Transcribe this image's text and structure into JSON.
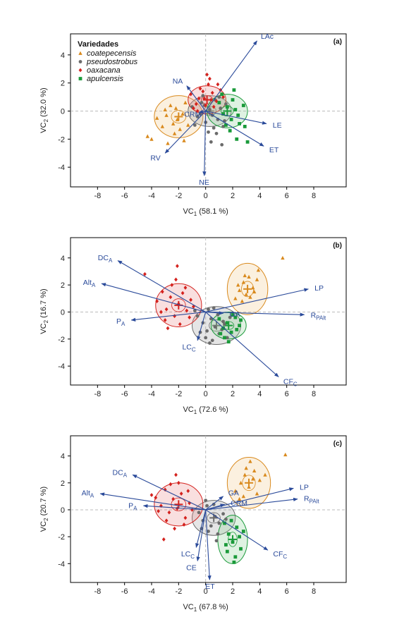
{
  "chart_data": [
    {
      "type": "scatter",
      "panel_label": "(a)",
      "xlabel": {
        "base": "VC",
        "sub": "1",
        "rest": " (58.1 %)"
      },
      "ylabel": {
        "base": "VC",
        "sub": "2",
        "rest": " (32.0 %)"
      },
      "xlim": [
        -10,
        10.4
      ],
      "ylim": [
        -5.4,
        5.5
      ],
      "xticks": [
        -8,
        -6,
        -4,
        -2,
        0,
        2,
        4,
        6,
        8
      ],
      "yticks": [
        -4,
        -2,
        0,
        2,
        4
      ],
      "legend": {
        "title": "Variedades",
        "placement": "top-left",
        "entries": [
          {
            "name": "coatepecensis",
            "marker": "triangle",
            "color": "#d98a1e"
          },
          {
            "name": "pseudostrobus",
            "marker": "circle",
            "color": "#6b6b6b"
          },
          {
            "name": "oaxacana",
            "marker": "diamond",
            "color": "#d4221e"
          },
          {
            "name": "apulcensis",
            "marker": "square",
            "color": "#1a9a3a"
          }
        ]
      },
      "ellipses": [
        {
          "group": "coatepecensis",
          "cx": -2.0,
          "cy": -0.4,
          "rx": 1.8,
          "ry": 1.5
        },
        {
          "group": "pseudostrobus",
          "cx": 0.3,
          "cy": 0.0,
          "rx": 1.6,
          "ry": 1.1
        },
        {
          "group": "oaxacana",
          "cx": 0.1,
          "cy": 0.8,
          "rx": 1.4,
          "ry": 1.0
        },
        {
          "group": "apulcensis",
          "cx": 1.6,
          "cy": 0.0,
          "rx": 1.5,
          "ry": 1.2
        }
      ],
      "vectors": [
        {
          "label": "LAc",
          "sub": "",
          "x": 3.8,
          "y": 5.0
        },
        {
          "label": "NA",
          "sub": "",
          "x": -1.4,
          "y": 1.8
        },
        {
          "label": "CRM",
          "sub": "",
          "x": -0.5,
          "y": -0.1
        },
        {
          "label": "LE",
          "sub": "",
          "x": 4.5,
          "y": -0.9
        },
        {
          "label": "ET",
          "sub": "",
          "x": 4.3,
          "y": -2.5
        },
        {
          "label": "RV",
          "sub": "",
          "x": -3.0,
          "y": -3.0
        },
        {
          "label": "NE",
          "sub": "",
          "x": -0.1,
          "y": -4.6
        }
      ],
      "series": [
        {
          "name": "coatepecensis",
          "x": [
            -4.3,
            -3.2,
            -2.9,
            -2.6,
            -2.4,
            -2.2,
            -2.1,
            -1.9,
            -1.7,
            -1.5,
            -1.3,
            -3.6,
            -2.8,
            -4.0,
            -2.3,
            -1.6,
            -3.0
          ],
          "y": [
            -1.8,
            -1.1,
            -0.3,
            0.4,
            -0.9,
            0.2,
            -0.6,
            -1.3,
            -0.2,
            0.6,
            -1.0,
            -0.5,
            -2.3,
            -2.0,
            -1.6,
            -2.1,
            0.1
          ]
        },
        {
          "name": "pseudostrobus",
          "x": [
            -1.0,
            -0.6,
            -0.3,
            0.0,
            0.3,
            0.5,
            0.7,
            0.9,
            1.1,
            1.3,
            1.5,
            -0.8,
            -0.2,
            0.2,
            0.6,
            1.0,
            -0.4,
            0.8,
            1.4,
            -0.1,
            0.4,
            1.2
          ],
          "y": [
            0.3,
            -0.4,
            0.6,
            -0.8,
            0.1,
            -0.3,
            0.8,
            -0.6,
            0.2,
            -1.1,
            0.5,
            -1.0,
            1.1,
            -1.5,
            -1.2,
            1.0,
            -0.2,
            -1.6,
            -0.7,
            0.4,
            -2.2,
            -2.4
          ]
        },
        {
          "name": "oaxacana",
          "x": [
            -1.1,
            -0.7,
            -0.4,
            -0.1,
            0.2,
            0.5,
            0.8,
            1.1,
            -0.9,
            -0.5,
            0.0,
            0.4,
            0.9,
            -0.2,
            0.6,
            0.1,
            -0.6,
            1.3,
            0.3
          ],
          "y": [
            1.2,
            0.5,
            1.6,
            0.9,
            1.9,
            1.3,
            0.7,
            1.5,
            0.2,
            0.9,
            0.4,
            0.8,
            1.9,
            1.4,
            0.3,
            2.6,
            0.0,
            1.0,
            2.3
          ]
        },
        {
          "name": "apulcensis",
          "x": [
            1.0,
            1.3,
            1.6,
            1.9,
            2.2,
            2.5,
            2.8,
            1.5,
            2.0,
            2.4,
            1.2,
            1.8,
            2.9,
            2.3,
            3.1,
            2.1
          ],
          "y": [
            0.6,
            -0.2,
            0.3,
            -0.6,
            0.1,
            -0.9,
            0.4,
            -1.0,
            0.8,
            -0.3,
            1.2,
            -1.4,
            -1.1,
            -2.0,
            -2.2,
            1.5
          ]
        }
      ]
    },
    {
      "type": "scatter",
      "panel_label": "(b)",
      "xlabel": {
        "base": "VC",
        "sub": "1",
        "rest": " (72.6 %)"
      },
      "ylabel": {
        "base": "VC",
        "sub": "2",
        "rest": " (16.7 %)"
      },
      "xlim": [
        -10,
        10.4
      ],
      "ylim": [
        -5.4,
        5.5
      ],
      "xticks": [
        -8,
        -6,
        -4,
        -2,
        0,
        2,
        4,
        6,
        8
      ],
      "yticks": [
        -4,
        -2,
        0,
        2,
        4
      ],
      "ellipses": [
        {
          "group": "coatepecensis",
          "cx": 3.1,
          "cy": 1.7,
          "rx": 1.5,
          "ry": 1.9
        },
        {
          "group": "pseudostrobus",
          "cx": 0.8,
          "cy": -1.0,
          "rx": 1.8,
          "ry": 1.4
        },
        {
          "group": "oaxacana",
          "cx": -2.0,
          "cy": 0.5,
          "rx": 1.7,
          "ry": 1.6
        },
        {
          "group": "apulcensis",
          "cx": 1.7,
          "cy": -1.0,
          "rx": 1.3,
          "ry": 1.0
        }
      ],
      "vectors": [
        {
          "label": "DC",
          "sub": "A",
          "x": -6.5,
          "y": 3.8
        },
        {
          "label": "Alt",
          "sub": "A",
          "x": -7.7,
          "y": 2.1
        },
        {
          "label": "P",
          "sub": "A",
          "x": -5.5,
          "y": -0.6
        },
        {
          "label": "LC",
          "sub": "C",
          "x": -0.6,
          "y": -2.1
        },
        {
          "label": "GA",
          "sub": "",
          "x": 1.3,
          "y": -0.1
        },
        {
          "label": "LP",
          "sub": "",
          "x": 7.6,
          "y": 1.7
        },
        {
          "label": "R",
          "sub": "PAlt",
          "x": 7.3,
          "y": -0.2
        },
        {
          "label": "CF",
          "sub": "C",
          "x": 5.4,
          "y": -4.8
        }
      ],
      "series": [
        {
          "name": "coatepecensis",
          "x": [
            2.2,
            2.5,
            2.8,
            3.0,
            3.2,
            3.5,
            3.8,
            2.7,
            3.3,
            2.4,
            3.6,
            5.7,
            3.9,
            2.9
          ],
          "y": [
            1.0,
            1.6,
            2.2,
            1.3,
            2.6,
            1.8,
            2.4,
            0.8,
            1.1,
            2.0,
            1.5,
            4.0,
            3.1,
            2.7
          ]
        },
        {
          "name": "pseudostrobus",
          "x": [
            -0.6,
            -0.2,
            0.1,
            0.4,
            0.7,
            1.0,
            1.3,
            1.6,
            0.2,
            0.5,
            0.9,
            1.2,
            -0.4,
            0.0,
            0.6,
            1.4,
            0.3,
            1.8,
            -0.8
          ],
          "y": [
            -0.3,
            -0.8,
            -1.4,
            -0.5,
            -1.1,
            -1.6,
            -0.7,
            -1.9,
            0.2,
            -2.1,
            -0.2,
            -1.3,
            -1.5,
            -1.9,
            0.3,
            -0.9,
            -2.3,
            -0.4,
            0.1
          ]
        },
        {
          "name": "oaxacana",
          "x": [
            -3.6,
            -3.2,
            -2.9,
            -2.6,
            -2.3,
            -2.0,
            -1.7,
            -1.4,
            -1.1,
            -3.0,
            -2.5,
            -1.9,
            -1.5,
            -3.3,
            -2.8,
            -2.2,
            -1.2,
            -4.5,
            -2.1,
            -0.9
          ],
          "y": [
            0.8,
            1.5,
            0.2,
            1.1,
            -0.3,
            0.6,
            1.4,
            0.1,
            0.9,
            -0.6,
            2.0,
            -0.9,
            1.8,
            0.0,
            -1.2,
            2.4,
            -0.4,
            2.8,
            3.4,
            0.4
          ]
        },
        {
          "name": "apulcensis",
          "x": [
            1.0,
            1.3,
            1.6,
            1.9,
            2.2,
            2.5,
            1.4,
            2.0,
            2.6,
            1.1,
            1.7,
            2.3
          ],
          "y": [
            -0.5,
            -1.2,
            -0.8,
            -1.5,
            -0.4,
            -1.0,
            -1.9,
            -0.2,
            -0.6,
            -1.6,
            -2.2,
            -1.3
          ]
        }
      ]
    },
    {
      "type": "scatter",
      "panel_label": "(c)",
      "xlabel": {
        "base": "VC",
        "sub": "1",
        "rest": " (67.8 %)"
      },
      "ylabel": {
        "base": "VC",
        "sub": "2",
        "rest": " (20.7 %)"
      },
      "xlim": [
        -10,
        10.4
      ],
      "ylim": [
        -5.4,
        5.5
      ],
      "xticks": [
        -8,
        -6,
        -4,
        -2,
        0,
        2,
        4,
        6,
        8
      ],
      "yticks": [
        -4,
        -2,
        0,
        2,
        4
      ],
      "ellipses": [
        {
          "group": "coatepecensis",
          "cx": 3.2,
          "cy": 2.0,
          "rx": 1.6,
          "ry": 1.9
        },
        {
          "group": "pseudostrobus",
          "cx": 0.6,
          "cy": -0.6,
          "rx": 1.6,
          "ry": 1.3
        },
        {
          "group": "oaxacana",
          "cx": -2.0,
          "cy": 0.4,
          "rx": 1.8,
          "ry": 1.6
        },
        {
          "group": "apulcensis",
          "cx": 2.0,
          "cy": -2.2,
          "rx": 1.1,
          "ry": 1.8
        }
      ],
      "vectors": [
        {
          "label": "DC",
          "sub": "A",
          "x": -5.4,
          "y": 2.6
        },
        {
          "label": "Alt",
          "sub": "A",
          "x": -7.8,
          "y": 1.2
        },
        {
          "label": "P",
          "sub": "A",
          "x": -4.6,
          "y": 0.3
        },
        {
          "label": "GA",
          "sub": "",
          "x": 1.3,
          "y": 1.0
        },
        {
          "label": "CRM",
          "sub": "",
          "x": 1.4,
          "y": 0.4
        },
        {
          "label": "LP",
          "sub": "",
          "x": 6.5,
          "y": 1.6
        },
        {
          "label": "R",
          "sub": "PAlt",
          "x": 6.8,
          "y": 0.8
        },
        {
          "label": "CF",
          "sub": "C",
          "x": 4.6,
          "y": -3.0
        },
        {
          "label": "LC",
          "sub": "C",
          "x": -0.7,
          "y": -2.8
        },
        {
          "label": "CE",
          "sub": "",
          "x": -0.6,
          "y": -3.8
        },
        {
          "label": "ET",
          "sub": "",
          "x": 0.3,
          "y": -5.2
        }
      ],
      "series": [
        {
          "name": "coatepecensis",
          "x": [
            2.2,
            2.6,
            2.9,
            3.2,
            3.5,
            3.8,
            2.5,
            3.0,
            3.6,
            2.8,
            3.3,
            4.0,
            5.9,
            4.4
          ],
          "y": [
            1.4,
            2.0,
            2.6,
            1.7,
            2.3,
            1.2,
            0.8,
            3.1,
            2.9,
            1.0,
            3.6,
            2.2,
            4.1,
            2.6
          ]
        },
        {
          "name": "pseudostrobus",
          "x": [
            -0.5,
            -0.2,
            0.1,
            0.4,
            0.7,
            1.0,
            1.3,
            0.2,
            0.6,
            0.9,
            -0.3,
            1.5,
            0.0,
            0.8
          ],
          "y": [
            -0.2,
            -0.8,
            0.3,
            -1.2,
            -0.5,
            -1.0,
            -0.3,
            -1.6,
            0.4,
            -1.8,
            -1.4,
            -0.7,
            0.7,
            -2.3
          ]
        },
        {
          "name": "oaxacana",
          "x": [
            -3.7,
            -3.3,
            -3.0,
            -2.7,
            -2.4,
            -2.1,
            -1.8,
            -1.5,
            -1.2,
            -2.9,
            -2.6,
            -2.0,
            -1.6,
            -3.5,
            -2.3,
            -1.3,
            -4.0,
            -2.2,
            -3.1,
            -1.0
          ],
          "y": [
            0.9,
            0.3,
            1.5,
            -0.2,
            0.8,
            0.1,
            1.2,
            -0.6,
            0.5,
            -0.8,
            1.9,
            2.0,
            -1.1,
            -0.1,
            -1.4,
            1.4,
            1.1,
            2.6,
            -2.2,
            0.0
          ]
        },
        {
          "name": "apulcensis",
          "x": [
            1.4,
            1.7,
            2.0,
            2.3,
            2.6,
            1.6,
            2.2,
            2.5,
            1.9,
            2.8,
            1.5,
            2.1
          ],
          "y": [
            -1.0,
            -1.8,
            -2.4,
            -1.3,
            -2.9,
            -3.1,
            -3.5,
            -2.0,
            -0.8,
            -1.6,
            -2.6,
            -3.9
          ]
        }
      ]
    }
  ]
}
